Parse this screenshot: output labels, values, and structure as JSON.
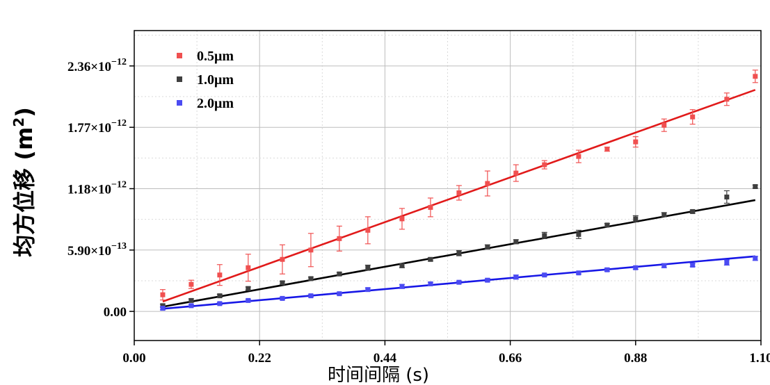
{
  "chart_data": {
    "type": "scatter",
    "xlabel": "时间间隔 (s)",
    "ylabel": "均方位移 (m",
    "ylabel_sup": "2",
    "ylabel_close": ")",
    "xlim": [
      0.0,
      1.1
    ],
    "ylim": [
      -2.8e-13,
      2.7e-12
    ],
    "x_ticks": [
      0.0,
      0.22,
      0.44,
      0.66,
      0.88,
      1.1
    ],
    "x_tick_labels": [
      "0.00",
      "0.22",
      "0.44",
      "0.66",
      "0.88",
      "1.10"
    ],
    "y_ticks": [
      0.0,
      5.9e-13,
      1.18e-12,
      1.77e-12,
      2.36e-12
    ],
    "y_tick_labels": [
      {
        "mantissa": "0.00",
        "base": "",
        "exp": ""
      },
      {
        "mantissa": "5.90×10",
        "base": "",
        "exp": "−13"
      },
      {
        "mantissa": "1.18×10",
        "base": "",
        "exp": "−12"
      },
      {
        "mantissa": "1.77×10",
        "base": "",
        "exp": "−12"
      },
      {
        "mantissa": "2.36×10",
        "base": "",
        "exp": "−12"
      }
    ],
    "grid": true,
    "legend_position": "top-left",
    "x": [
      0.05,
      0.1,
      0.15,
      0.2,
      0.26,
      0.31,
      0.36,
      0.41,
      0.47,
      0.52,
      0.57,
      0.62,
      0.67,
      0.72,
      0.78,
      0.83,
      0.88,
      0.93,
      0.98,
      1.04,
      1.09
    ],
    "series": [
      {
        "name": "0.5μm",
        "color": "#f05050",
        "fit_color": "#e11a1a",
        "values": [
          1.6e-13,
          2.6e-13,
          3.5e-13,
          4.2e-13,
          5e-13,
          5.9e-13,
          7e-13,
          7.8e-13,
          8.9e-13,
          1e-12,
          1.14e-12,
          1.23e-12,
          1.33e-12,
          1.41e-12,
          1.49e-12,
          1.56e-12,
          1.63e-12,
          1.79e-12,
          1.87e-12,
          2.04e-12,
          2.26e-12
        ],
        "errors": [
          5e-14,
          4e-14,
          1e-13,
          1.3e-13,
          1.4e-13,
          1.6e-13,
          1.2e-13,
          1.3e-13,
          1e-13,
          9e-14,
          7e-14,
          1.2e-13,
          8e-14,
          4e-14,
          6e-14,
          2e-14,
          5e-14,
          6e-14,
          7e-14,
          6e-14,
          6e-14
        ],
        "fit": [
          [
            0.05,
            9.5e-14
          ],
          [
            1.09,
            2.13e-12
          ]
        ]
      },
      {
        "name": "1.0μm",
        "color": "#3f3f3f",
        "fit_color": "#000000",
        "values": [
          5.5e-14,
          1.05e-13,
          1.5e-13,
          2.2e-13,
          2.75e-13,
          3.15e-13,
          3.6e-13,
          4.2e-13,
          4.4e-13,
          5e-13,
          5.6e-13,
          6.2e-13,
          6.7e-13,
          7.3e-13,
          7.4e-13,
          8.3e-13,
          8.9e-13,
          9.3e-13,
          9.6e-13,
          1.1e-12,
          1.2e-12
        ],
        "errors": [
          1.5e-14,
          1.5e-14,
          1.5e-14,
          1.5e-14,
          1.5e-14,
          1.5e-14,
          1.5e-14,
          2.5e-14,
          2e-14,
          1.5e-14,
          2.5e-14,
          2e-14,
          2e-14,
          3e-14,
          4e-14,
          1.5e-14,
          3e-14,
          2e-14,
          1.5e-14,
          6e-14,
          1.5e-14
        ],
        "fit": [
          [
            0.05,
            4.5e-14
          ],
          [
            1.09,
            1.07e-12
          ]
        ]
      },
      {
        "name": "2.0μm",
        "color": "#4b4bf2",
        "fit_color": "#1717e6",
        "values": [
          3e-14,
          5.5e-14,
          7.5e-14,
          1.05e-13,
          1.25e-13,
          1.5e-13,
          1.7e-13,
          2.1e-13,
          2.4e-13,
          2.65e-13,
          2.8e-13,
          3e-13,
          3.3e-13,
          3.5e-13,
          3.7e-13,
          4e-13,
          4.2e-13,
          4.4e-13,
          4.45e-13,
          4.7e-13,
          5.1e-13
        ],
        "errors": [
          1.5e-14,
          1e-14,
          1e-14,
          1e-14,
          1e-14,
          1e-14,
          1e-14,
          1.5e-14,
          2e-14,
          1.5e-14,
          1e-14,
          1.5e-14,
          2e-14,
          1e-14,
          1e-14,
          1.5e-14,
          1.5e-14,
          2e-14,
          1.5e-14,
          2.5e-14,
          2e-14
        ],
        "fit": [
          [
            0.05,
            2.5e-14
          ],
          [
            1.09,
            5.3e-13
          ]
        ]
      }
    ]
  }
}
